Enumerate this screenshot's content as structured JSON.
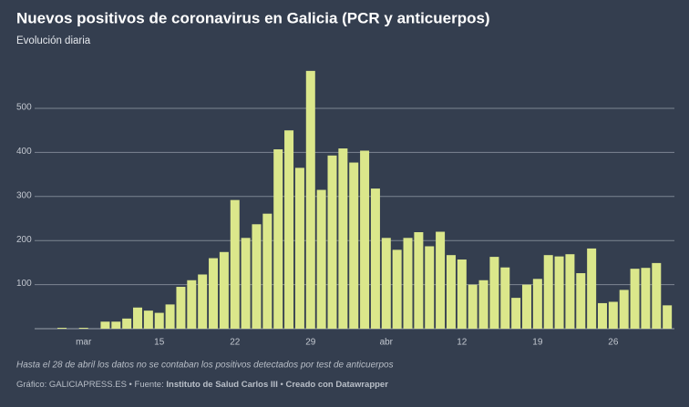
{
  "chart_data": {
    "type": "bar",
    "title": "Nuevos positivos de coronavirus en Galicia (PCR y anticuerpos)",
    "subtitle": "Evolución diaria",
    "note": "Hasta el 28 de abril los datos no se contaban los positivos detectados por test de anticuerpos",
    "footer": {
      "credit": "Gráfico: GALICIAPRESS.ES",
      "source_label": "Fuente:",
      "source": "Instituto de Salud Carlos III",
      "made_with": "Creado con Datawrapper"
    },
    "categories": [
      null,
      null,
      "mar",
      null,
      null,
      null,
      null,
      null,
      null,
      "15",
      null,
      null,
      null,
      null,
      null,
      null,
      "22",
      null,
      null,
      null,
      null,
      null,
      null,
      "29",
      null,
      null,
      null,
      null,
      null,
      null,
      "abr",
      null,
      null,
      null,
      null,
      null,
      null,
      "12",
      null,
      null,
      null,
      null,
      null,
      null,
      "19",
      null,
      null,
      null,
      null,
      null,
      null,
      "26",
      null,
      null,
      null,
      null,
      null
    ],
    "values": [
      2,
      0,
      2,
      0,
      16,
      16,
      23,
      48,
      41,
      36,
      55,
      95,
      110,
      123,
      160,
      174,
      292,
      206,
      237,
      261,
      407,
      450,
      365,
      585,
      315,
      393,
      409,
      377,
      404,
      318,
      206,
      179,
      206,
      219,
      187,
      220,
      167,
      157,
      100,
      110,
      163,
      139,
      70,
      100,
      113,
      167,
      164,
      169,
      126,
      182,
      58,
      61,
      88,
      136,
      138,
      149,
      53
    ],
    "color": "#dbe78b",
    "ylim": [
      0,
      600
    ],
    "yticks": [
      100,
      200,
      300,
      400,
      500
    ],
    "grid": true
  }
}
